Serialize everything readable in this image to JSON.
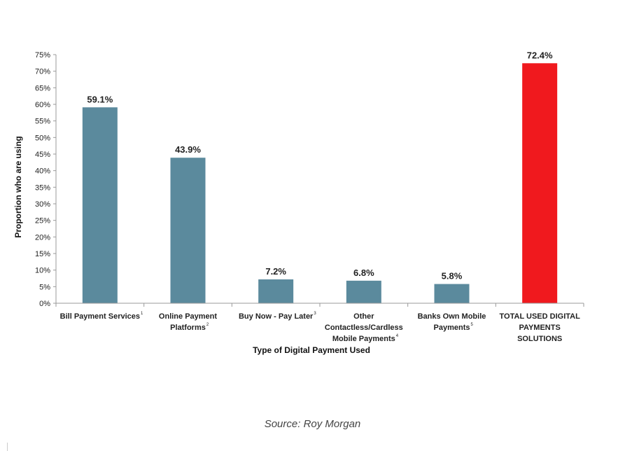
{
  "chart_data": {
    "type": "bar",
    "categories": [
      {
        "lines": [
          "Bill Payment Services"
        ],
        "footnote": "1"
      },
      {
        "lines": [
          "Online Payment",
          "Platforms"
        ],
        "footnote": "2"
      },
      {
        "lines": [
          "Buy Now - Pay Later"
        ],
        "footnote": "3"
      },
      {
        "lines": [
          "Other",
          "Contactless/Cardless",
          "Mobile Payments"
        ],
        "footnote": "4"
      },
      {
        "lines": [
          "Banks Own Mobile",
          "Payments"
        ],
        "footnote": "5"
      },
      {
        "lines": [
          "TOTAL USED DIGITAL",
          "PAYMENTS",
          "SOLUTIONS"
        ],
        "footnote": ""
      }
    ],
    "values": [
      59.1,
      43.9,
      7.2,
      6.8,
      5.8,
      72.4
    ],
    "data_labels": [
      "59.1%",
      "43.9%",
      "7.2%",
      "6.8%",
      "5.8%",
      "72.4%"
    ],
    "bar_colors": [
      "#5b8a9d",
      "#5b8a9d",
      "#5b8a9d",
      "#5b8a9d",
      "#5b8a9d",
      "#f0191e"
    ],
    "xlabel": "Type of Digital Payment Used",
    "ylabel": "Proportion who are using",
    "ylim": [
      0,
      75
    ],
    "yticks": [
      "0%",
      "5%",
      "10%",
      "15%",
      "20%",
      "25%",
      "30%",
      "35%",
      "40%",
      "45%",
      "50%",
      "55%",
      "60%",
      "65%",
      "70%",
      "75%"
    ],
    "grid": false,
    "legend": "none"
  },
  "caption": "Source: Roy Morgan"
}
